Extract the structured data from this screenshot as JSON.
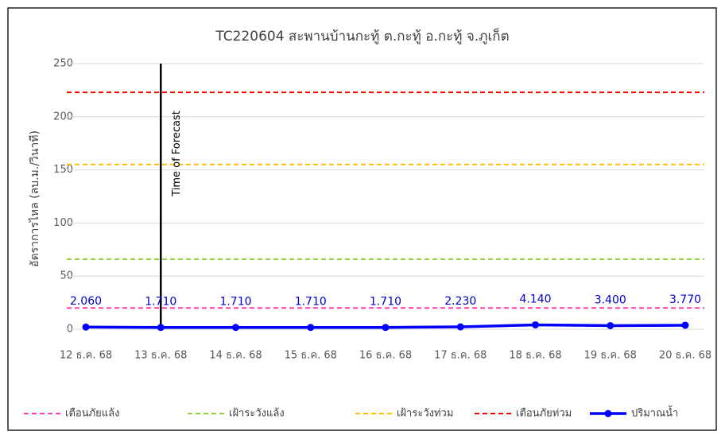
{
  "chart_data": {
    "type": "line",
    "title": "TC220604 สะพานบ้านกะทู้ ต.กะทู้ อ.กะทู้ จ.ภูเก็ต",
    "y_label": "อัตราการไหล (ลบ.ม./วินาที)",
    "categories": [
      "12 ธ.ค. 68",
      "13 ธ.ค. 68",
      "14 ธ.ค. 68",
      "15 ธ.ค. 68",
      "16 ธ.ค. 68",
      "17 ธ.ค. 68",
      "18 ธ.ค. 68",
      "19 ธ.ค. 68",
      "20 ธ.ค. 68"
    ],
    "thresholds": [
      {
        "name": "เตือนภัยแล้ง",
        "color": "#ff3fa6",
        "value": 20
      },
      {
        "name": "เฝ้าระวังแล้ง",
        "color": "#8fd13a",
        "value": 66
      },
      {
        "name": "เฝ้าระวังท่วม",
        "color": "#ffc000",
        "value": 155
      },
      {
        "name": "เตือนภัยท่วม",
        "color": "#ff0000",
        "value": 223
      }
    ],
    "series": [
      {
        "name": "ปริมาณน้ำ",
        "color": "#0000ff",
        "values": [
          2.06,
          1.71,
          1.71,
          1.71,
          1.71,
          2.23,
          4.14,
          3.4,
          3.77
        ],
        "value_labels": [
          "2.060",
          "1.710",
          "1.710",
          "1.710",
          "1.710",
          "2.230",
          "4.140",
          "3.400",
          "3.770"
        ]
      }
    ],
    "forecast": {
      "category": "13 ธ.ค. 68",
      "label": "Time of Forecast"
    },
    "ylim": [
      0,
      250
    ],
    "yticks": [
      0,
      50,
      100,
      150,
      200,
      250
    ],
    "grid": true
  }
}
